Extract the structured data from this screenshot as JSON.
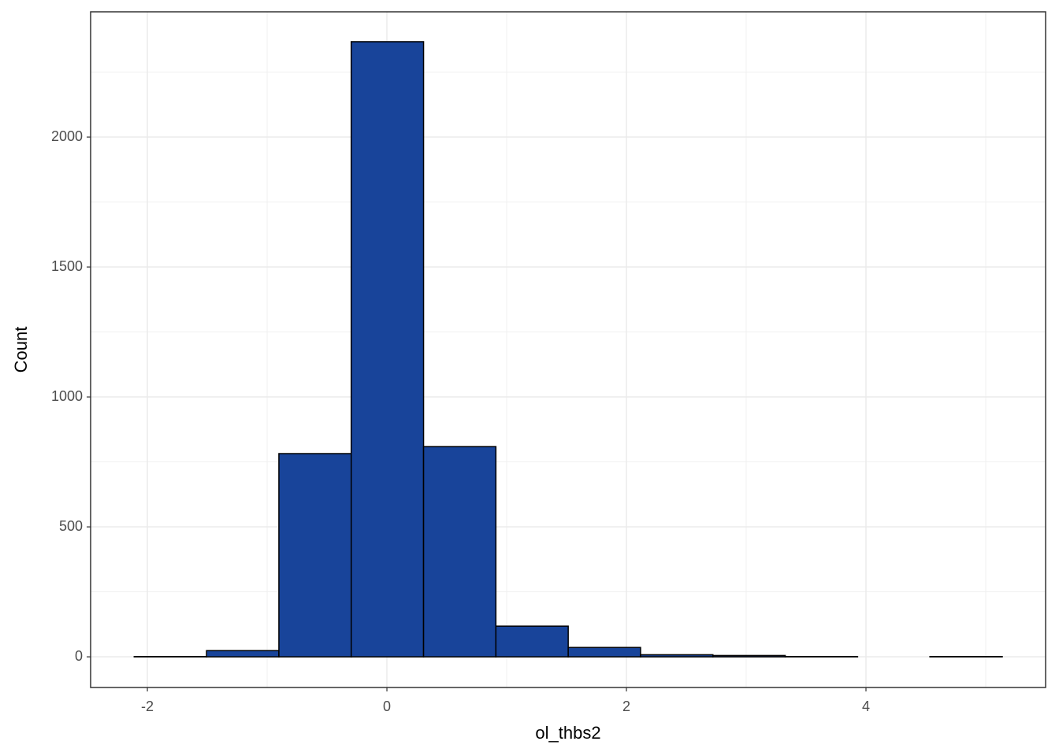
{
  "chart_data": {
    "type": "histogram",
    "x_label": "ol_thbs2",
    "y_label": "Count",
    "bins": [
      -2.11,
      -1.506,
      -0.902,
      -0.298,
      0.306,
      0.91,
      1.514,
      2.118,
      2.722,
      3.326,
      3.93,
      4.534,
      5.138
    ],
    "values": [
      1,
      24,
      782,
      2367,
      809,
      118,
      36,
      8,
      5,
      1,
      0,
      1
    ],
    "color": "#18449a",
    "edge_color": "#000000",
    "xlim": [
      -2.474,
      5.5
    ],
    "ylim": [
      -118,
      2482
    ],
    "xticks": [
      -2,
      0,
      2,
      4
    ],
    "yticks": [
      0,
      500,
      1000,
      1500,
      2000
    ],
    "grid": true
  }
}
